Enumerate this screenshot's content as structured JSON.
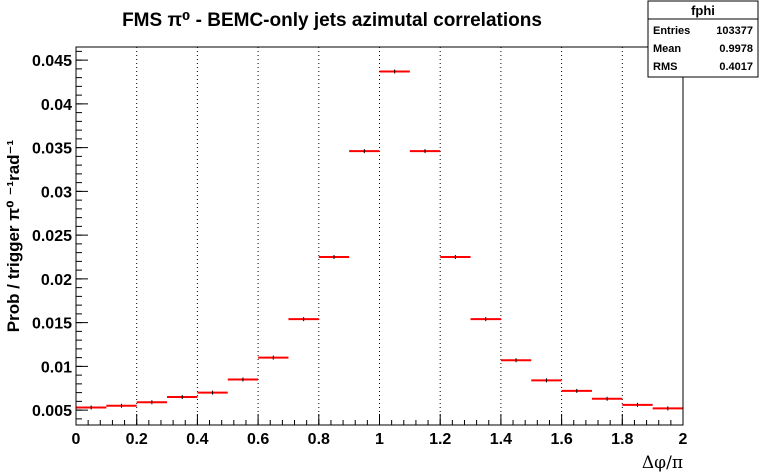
{
  "chart_data": {
    "type": "scatter",
    "title": "FMS π⁰ - BEMC-only jets azimutal correlations",
    "xlabel": "Δφ/π",
    "ylabel": "Prob / trigger π⁰ ⁻¹rad⁻¹",
    "xlim": [
      0,
      2
    ],
    "ylim": [
      0.0033,
      0.0465
    ],
    "grid": "vertical-dotted",
    "xticks": [
      "0",
      "0.2",
      "0.4",
      "0.6",
      "0.8",
      "1",
      "1.2",
      "1.4",
      "1.6",
      "1.8",
      "2"
    ],
    "yticks": [
      "0.005",
      "0.01",
      "0.015",
      "0.02",
      "0.025",
      "0.03",
      "0.035",
      "0.04",
      "0.045"
    ],
    "bin_width": 0.1,
    "x": [
      0.05,
      0.15,
      0.25,
      0.35,
      0.45,
      0.55,
      0.65,
      0.75,
      0.85,
      0.95,
      1.05,
      1.15,
      1.25,
      1.35,
      1.45,
      1.55,
      1.65,
      1.75,
      1.85,
      1.95
    ],
    "values": [
      0.0053,
      0.0055,
      0.0059,
      0.0065,
      0.007,
      0.0085,
      0.011,
      0.0154,
      0.0225,
      0.0346,
      0.0437,
      0.0346,
      0.0225,
      0.0154,
      0.0107,
      0.0084,
      0.0072,
      0.0063,
      0.0056,
      0.0052
    ],
    "color": "#ff0000",
    "stats": {
      "name": "fphi",
      "rows": [
        {
          "label": "Entries",
          "value": "103377"
        },
        {
          "label": "Mean",
          "value": "0.9978"
        },
        {
          "label": "RMS",
          "value": "0.4017"
        }
      ]
    }
  }
}
